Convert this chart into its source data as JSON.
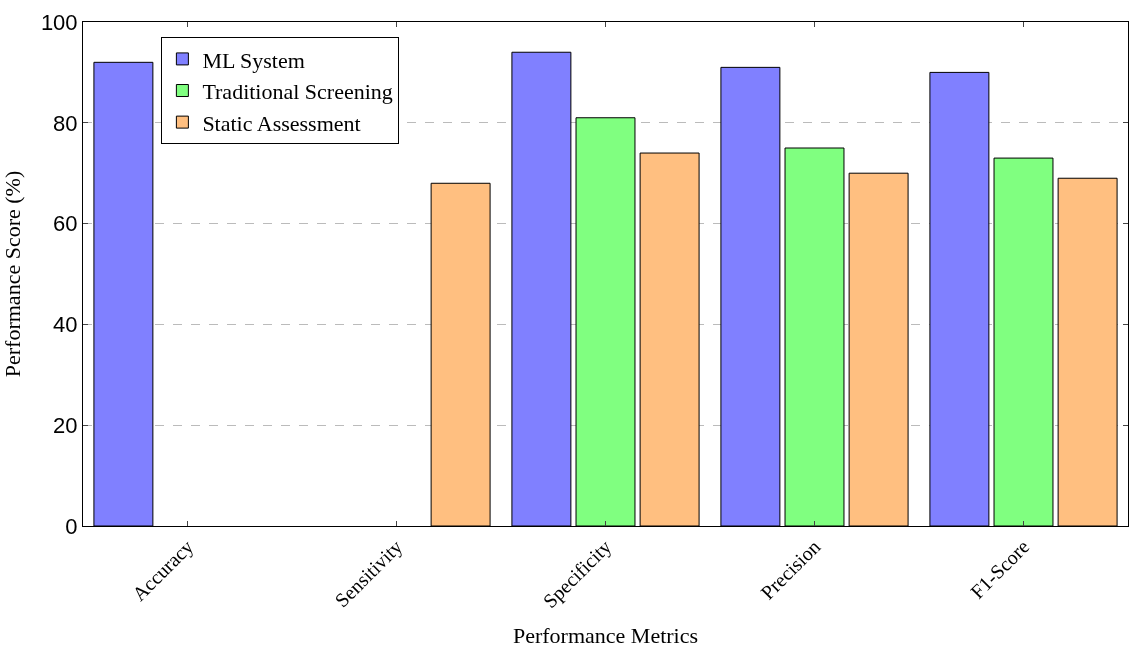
{
  "chart_data": {
    "type": "bar",
    "xlabel": "Performance Metrics",
    "ylabel": "Performance Score (%)",
    "categories": [
      "Accuracy",
      "Sensitivity",
      "Specificity",
      "Precision",
      "F1-Score"
    ],
    "series": [
      {
        "name": "ML System",
        "color": "#8080ff",
        "values": [
          92,
          null,
          94,
          91,
          90
        ]
      },
      {
        "name": "Traditional Screening",
        "color": "#80ff80",
        "values": [
          null,
          null,
          81,
          75,
          73
        ]
      },
      {
        "name": "Static Assessment",
        "color": "#ffbf80",
        "values": [
          null,
          68,
          74,
          70,
          69
        ]
      }
    ],
    "ylim": [
      0,
      100
    ],
    "yticks": [
      0,
      20,
      40,
      60,
      80,
      100
    ],
    "grid": "y",
    "legend": "top left"
  }
}
